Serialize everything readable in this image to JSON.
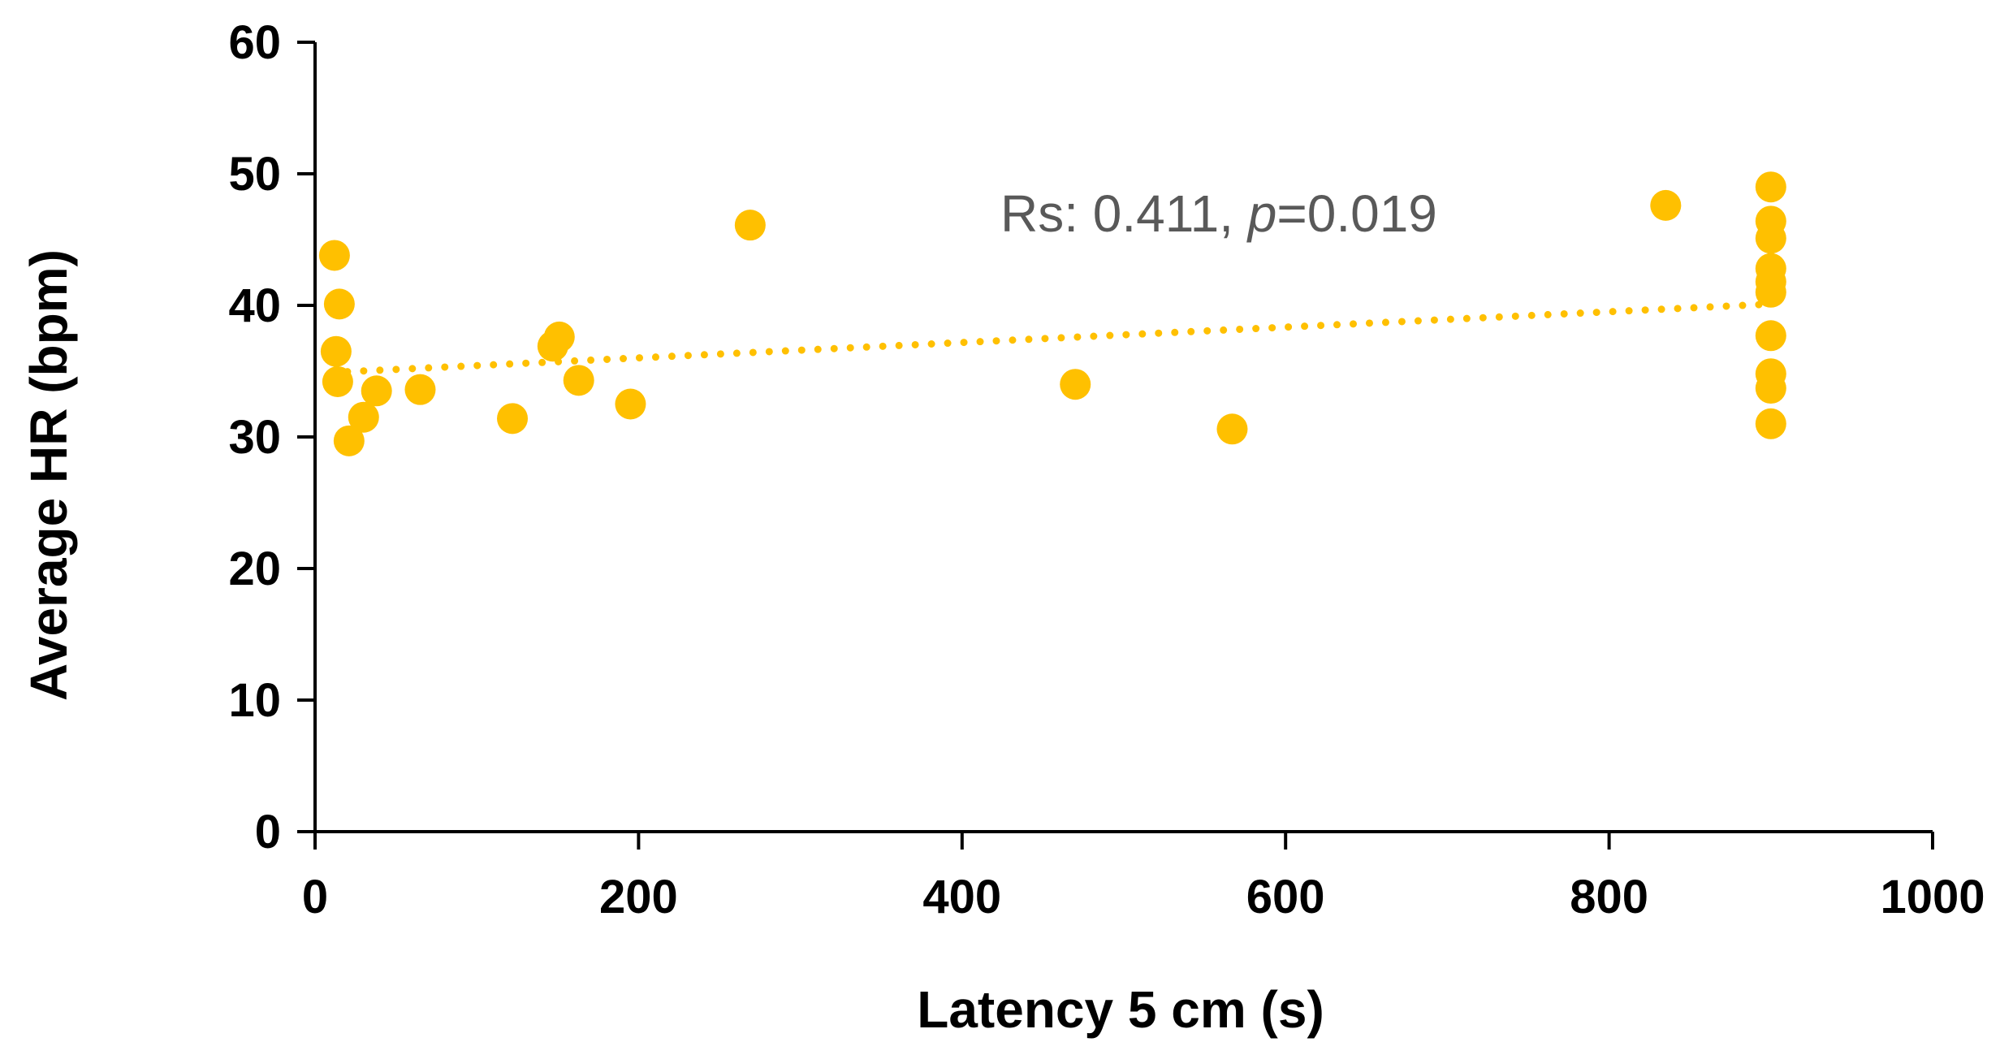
{
  "chart_data": {
    "type": "scatter",
    "title": "",
    "xlabel": "Latency 5 cm (s)",
    "ylabel": "Average HR (bpm)",
    "xlim": [
      0,
      1000
    ],
    "ylim": [
      0,
      60
    ],
    "xticks": [
      0,
      200,
      400,
      600,
      800,
      1000
    ],
    "yticks": [
      0,
      10,
      20,
      30,
      40,
      50,
      60
    ],
    "grid": false,
    "legend": "none",
    "series": [
      {
        "name": "Average HR",
        "color": "#FFC000",
        "points": [
          {
            "x": 12,
            "y": 43.8
          },
          {
            "x": 15,
            "y": 40.1
          },
          {
            "x": 13,
            "y": 36.5
          },
          {
            "x": 14,
            "y": 34.2
          },
          {
            "x": 21,
            "y": 29.7
          },
          {
            "x": 30,
            "y": 31.5
          },
          {
            "x": 38,
            "y": 33.5
          },
          {
            "x": 65,
            "y": 33.6
          },
          {
            "x": 122,
            "y": 31.4
          },
          {
            "x": 147,
            "y": 36.9
          },
          {
            "x": 151,
            "y": 37.6
          },
          {
            "x": 163,
            "y": 34.3
          },
          {
            "x": 195,
            "y": 32.5
          },
          {
            "x": 269,
            "y": 46.1
          },
          {
            "x": 470,
            "y": 34.0
          },
          {
            "x": 567,
            "y": 30.6
          },
          {
            "x": 835,
            "y": 47.6
          },
          {
            "x": 900,
            "y": 49.0
          },
          {
            "x": 900,
            "y": 46.4
          },
          {
            "x": 900,
            "y": 45.1
          },
          {
            "x": 900,
            "y": 42.8
          },
          {
            "x": 900,
            "y": 41.8
          },
          {
            "x": 900,
            "y": 41.0
          },
          {
            "x": 900,
            "y": 37.7
          },
          {
            "x": 900,
            "y": 34.8
          },
          {
            "x": 900,
            "y": 33.7
          },
          {
            "x": 900,
            "y": 31.0
          }
        ]
      }
    ],
    "trendline": {
      "style": "dotted",
      "color": "#FFC000",
      "x": [
        10,
        900
      ],
      "y": [
        34.9,
        40.1
      ]
    },
    "annotation": {
      "prefix": "Rs: 0.411, ",
      "italic": "p",
      "suffix": "=0.019"
    }
  }
}
